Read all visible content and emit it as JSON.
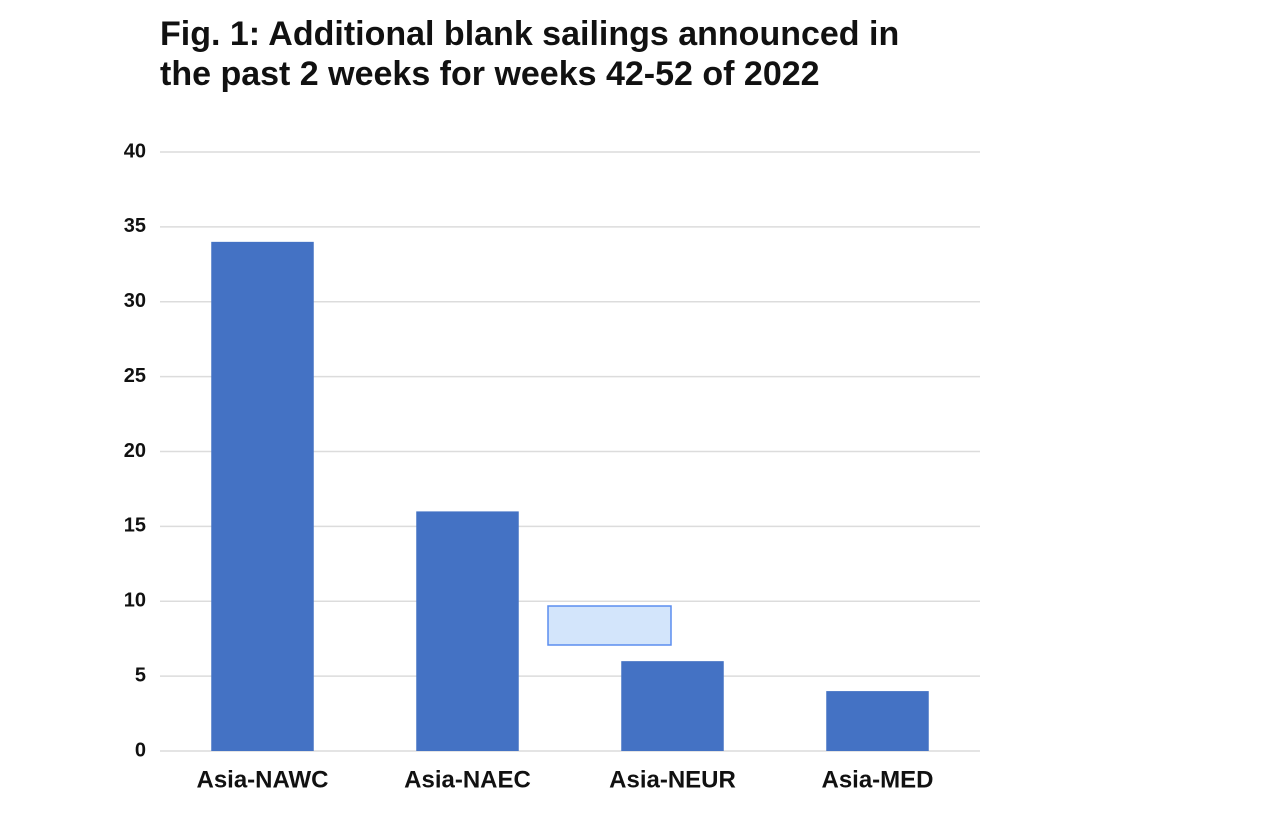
{
  "chart_data": {
    "type": "bar",
    "title": "Fig. 1: Additional blank sailings announced in the past 2 weeks for weeks 42-52 of 2022",
    "categories": [
      "Asia-NAWC",
      "Asia-NAEC",
      "Asia-NEUR",
      "Asia-MED"
    ],
    "values": [
      34,
      16,
      6,
      4
    ],
    "color": "#4472c4",
    "ylim": [
      0,
      40
    ],
    "yticks": [
      0,
      5,
      10,
      15,
      20,
      25,
      30,
      35,
      40
    ],
    "grid": true
  }
}
